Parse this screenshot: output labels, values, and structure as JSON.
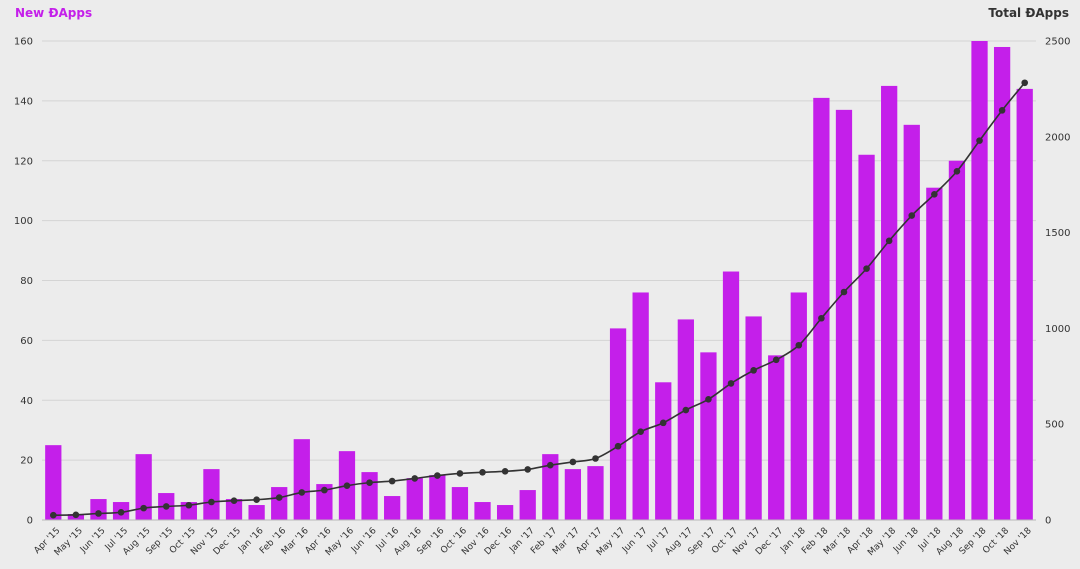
{
  "chart_data": {
    "type": "bar",
    "title": "",
    "grid": true,
    "x": {
      "categories": [
        "Apr '15",
        "May '15",
        "Jun '15",
        "Jul '15",
        "Aug '15",
        "Sep '15",
        "Oct '15",
        "Nov '15",
        "Dec '15",
        "Jan '16",
        "Feb '16",
        "Mar '16",
        "Apr '16",
        "May '16",
        "Jun '16",
        "Jul '16",
        "Aug '16",
        "Sep '16",
        "Oct '16",
        "Nov '16",
        "Dec '16",
        "Jan '17",
        "Feb '17",
        "Mar '17",
        "Apr '17",
        "May '17",
        "Jun '17",
        "Jul '17",
        "Aug '17",
        "Sep '17",
        "Oct '17",
        "Nov '17",
        "Dec '17",
        "Jan '18",
        "Feb '18",
        "Mar '18",
        "Apr '18",
        "May '18",
        "Jun '18",
        "Jul '18",
        "Aug '18",
        "Sep '18",
        "Oct '18",
        "Nov '18"
      ]
    },
    "y_left": {
      "label": "New ĐApps",
      "ylim": [
        0,
        160
      ],
      "ticks": [
        0,
        20,
        40,
        60,
        80,
        100,
        120,
        140,
        160
      ]
    },
    "y_right": {
      "label": "Total ĐApps",
      "ylim": [
        0,
        2500
      ],
      "ticks": [
        0,
        500,
        1000,
        1500,
        2000,
        2500
      ]
    },
    "series": [
      {
        "name": "New ĐApps",
        "type": "bar",
        "axis": "left",
        "color": "#c41fea",
        "values": [
          25,
          2,
          7,
          6,
          22,
          9,
          6,
          17,
          7,
          5,
          11,
          27,
          12,
          23,
          16,
          8,
          14,
          15,
          11,
          6,
          5,
          10,
          22,
          17,
          18,
          64,
          76,
          46,
          67,
          56,
          83,
          68,
          55,
          76,
          141,
          137,
          122,
          145,
          132,
          111,
          120,
          160,
          158,
          144
        ]
      },
      {
        "name": "Total ĐApps",
        "type": "line",
        "axis": "right",
        "color": "#333333",
        "values": [
          25,
          27,
          34,
          40,
          62,
          71,
          77,
          94,
          101,
          106,
          117,
          144,
          156,
          179,
          195,
          203,
          217,
          232,
          243,
          249,
          254,
          264,
          286,
          303,
          321,
          385,
          461,
          507,
          574,
          630,
          713,
          781,
          836,
          912,
          1053,
          1190,
          1312,
          1457,
          1589,
          1700,
          1820,
          1980,
          2138,
          2282
        ]
      }
    ]
  }
}
